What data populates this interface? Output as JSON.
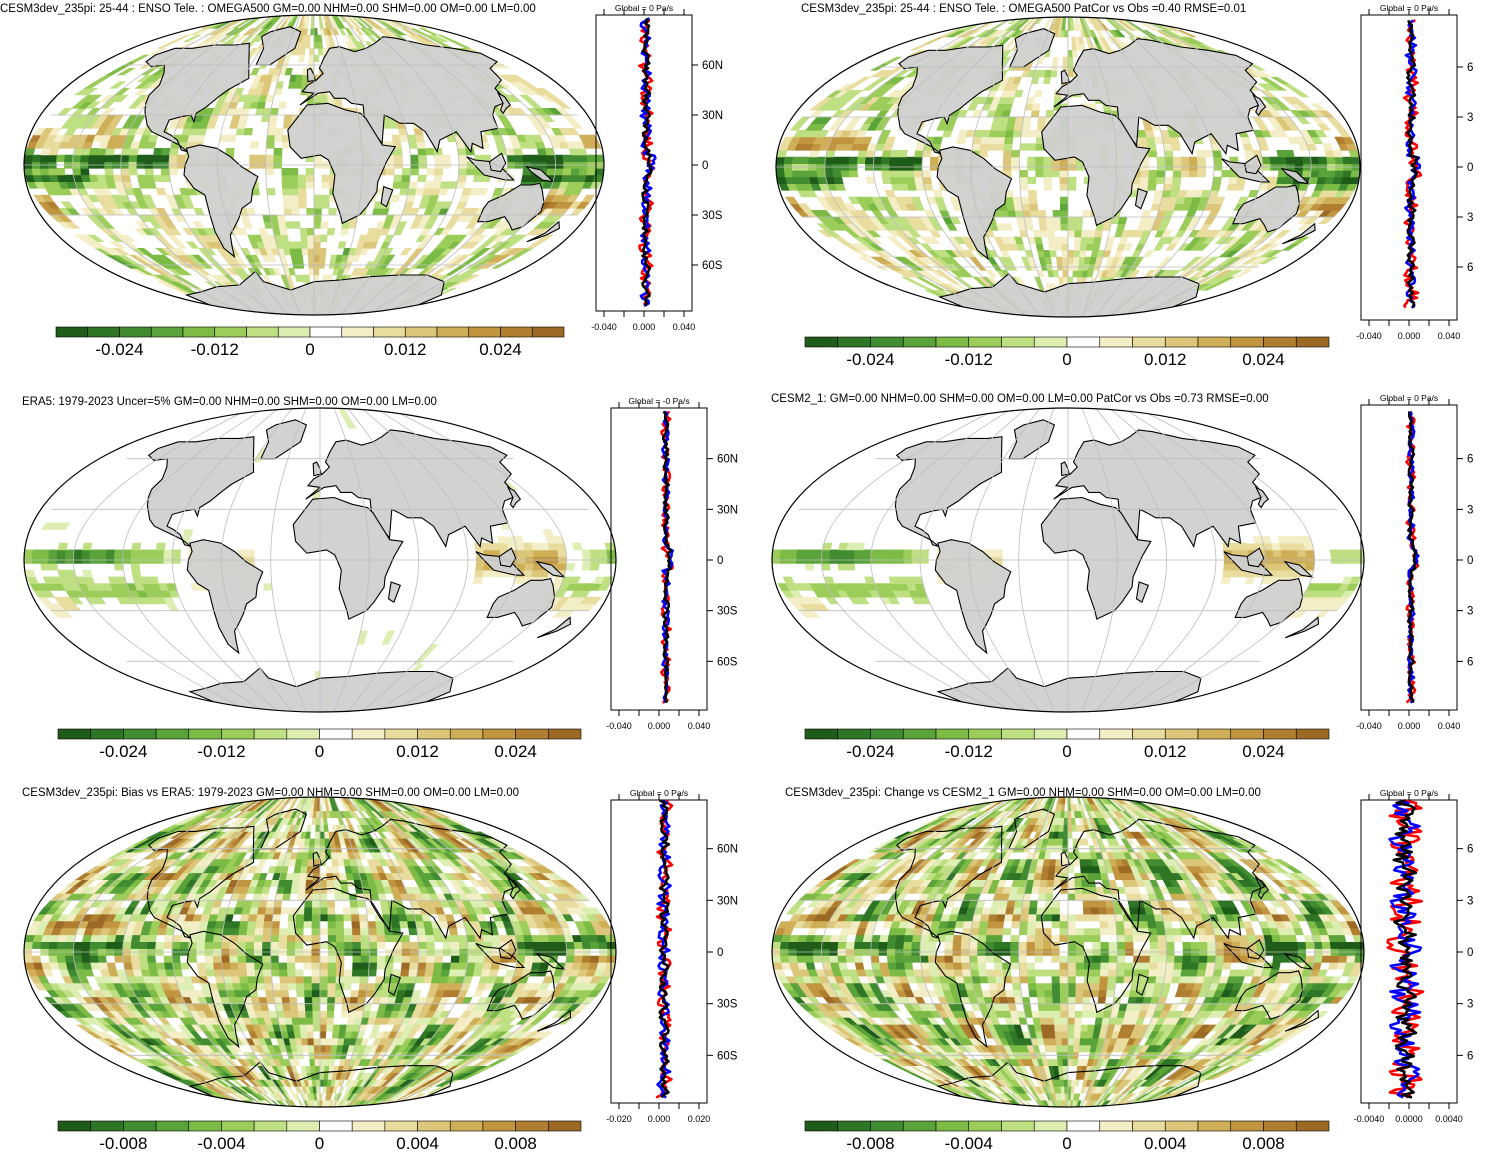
{
  "colors": {
    "scale": [
      "#1f5c1a",
      "#2e7525",
      "#418c30",
      "#5aa23a",
      "#7bbb46",
      "#9ccd5a",
      "#bedf82",
      "#dceeb2",
      "#ffffff",
      "#f4eec7",
      "#e8dc9e",
      "#dcc67a",
      "#cfae58",
      "#c19540",
      "#b07e30",
      "#9c6a24"
    ],
    "land": "#d0d0d0",
    "coast": "#000000",
    "grid": "#bdbdbd",
    "series_red": "#ff0000",
    "series_blue": "#0000ff",
    "series_black": "#000000"
  },
  "panels": [
    {
      "id": "p1",
      "title": "CESM3dev_235pi: 25-44 : ENSO Tele. : OMEGA500 GM=0.00 NHM=0.00 SHM=0.00 OM=0.00 LM=0.00",
      "zonal_title": "Global = 0 Pa/s",
      "lat_labels": [
        "60N",
        "30N",
        "0",
        "30S",
        "60S"
      ],
      "zonal_xticks": [
        "-0.040",
        "0.000",
        "0.040"
      ],
      "colorbar_labels": [
        "-0.024",
        "-0.012",
        "0",
        "0.012",
        "0.024"
      ],
      "land_fill": true,
      "pattern": "model",
      "zonal_amp": 0.3
    },
    {
      "id": "p2",
      "title": "CESM3dev_235pi: 25-44 : ENSO Tele. : OMEGA500 PatCor vs Obs =0.40 RMSE=0.01",
      "zonal_title": "Global = 0 Pa/s",
      "lat_labels": [
        "6",
        "3",
        "0",
        "3",
        "6"
      ],
      "zonal_xticks": [
        "-0.040",
        "0.000",
        "0.040"
      ],
      "colorbar_labels": [
        "-0.024",
        "-0.012",
        "0",
        "0.012",
        "0.024"
      ],
      "land_fill": true,
      "pattern": "model",
      "zonal_amp": 0.3
    },
    {
      "id": "p3",
      "title": "ERA5: 1979-2023 Uncer=5% GM=0.00 NHM=0.00 SHM=0.00 OM=0.00 LM=0.00",
      "zonal_title": "Global = -0 Pa/s",
      "lat_labels": [
        "60N",
        "30N",
        "0",
        "30S",
        "60S"
      ],
      "zonal_xticks": [
        "-0.040",
        "0.000",
        "0.040"
      ],
      "colorbar_labels": [
        "-0.024",
        "-0.012",
        "0",
        "0.012",
        "0.024"
      ],
      "land_fill": true,
      "pattern": "obs",
      "zonal_amp": 0.2
    },
    {
      "id": "p4",
      "title": "CESM2_1: GM=0.00 NHM=0.00 SHM=0.00 OM=0.00 LM=0.00 PatCor vs Obs =0.73 RMSE=0.00",
      "zonal_title": "Global = 0 Pa/s",
      "lat_labels": [
        "6",
        "3",
        "0",
        "3",
        "6"
      ],
      "zonal_xticks": [
        "-0.040",
        "0.000",
        "0.040"
      ],
      "colorbar_labels": [
        "-0.024",
        "-0.012",
        "0",
        "0.012",
        "0.024"
      ],
      "land_fill": true,
      "pattern": "smooth",
      "zonal_amp": 0.2
    },
    {
      "id": "p5",
      "title": "CESM3dev_235pi: Bias vs ERA5: 1979-2023 GM=0.00 NHM=0.00 SHM=0.00 OM=0.00 LM=0.00",
      "zonal_title": "Global = 0 Pa/s",
      "lat_labels": [
        "60N",
        "30N",
        "0",
        "30S",
        "60S"
      ],
      "zonal_xticks": [
        "-0.020",
        "0.000",
        "0.020"
      ],
      "colorbar_labels": [
        "-0.008",
        "-0.004",
        "0",
        "0.004",
        "0.008"
      ],
      "land_fill": false,
      "pattern": "bias",
      "zonal_amp": 0.35
    },
    {
      "id": "p6",
      "title": "CESM3dev_235pi: Change vs CESM2_1 GM=0.00 NHM=0.00 SHM=0.00 OM=0.00 LM=0.00",
      "zonal_title": "Global = 0 Pa/s",
      "lat_labels": [
        "6",
        "3",
        "0",
        "3",
        "6"
      ],
      "zonal_xticks": [
        "-0.0040",
        "0.0000",
        "0.0040"
      ],
      "colorbar_labels": [
        "-0.008",
        "-0.004",
        "0",
        "0.004",
        "0.008"
      ],
      "land_fill": false,
      "pattern": "bias",
      "zonal_amp": 0.85
    }
  ]
}
